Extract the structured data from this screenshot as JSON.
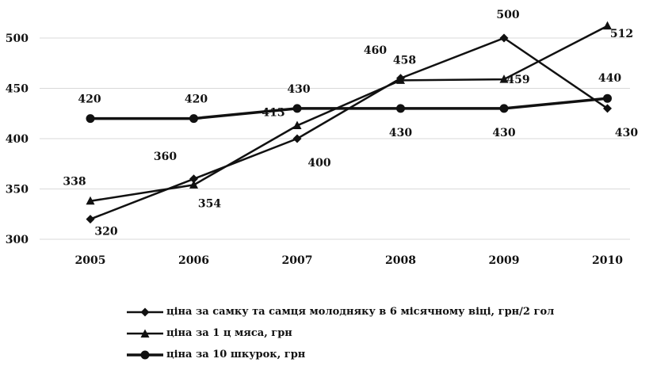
{
  "chart_data": {
    "type": "line",
    "x": [
      "2005",
      "2006",
      "2007",
      "2008",
      "2009",
      "2010"
    ],
    "yticks": [
      "300",
      "350",
      "400",
      "450",
      "500"
    ],
    "ylim": [
      300,
      520
    ],
    "grid": "horizontal",
    "legend_position": "bottom",
    "title": "",
    "xlabel": "",
    "ylabel": "",
    "series": [
      {
        "name": "ціна за самку та самця молодняку в 6 місячному віці, грн/2 гол",
        "marker": "diamond",
        "values": [
          320,
          360,
          400,
          460,
          500,
          430
        ],
        "labels": [
          "320",
          "360",
          "400",
          "460",
          "500",
          "430"
        ]
      },
      {
        "name": "ціна за 1 ц мяса, грн",
        "marker": "triangle",
        "values": [
          338,
          354,
          413,
          458,
          459,
          512
        ],
        "labels": [
          "338",
          "354",
          "413",
          "458",
          "459",
          "512"
        ]
      },
      {
        "name": "ціна за 10 шкурок, грн",
        "marker": "circle",
        "values": [
          420,
          420,
          430,
          430,
          430,
          440
        ],
        "labels": [
          "420",
          "420",
          "430",
          "430",
          "430",
          "440"
        ]
      }
    ]
  }
}
